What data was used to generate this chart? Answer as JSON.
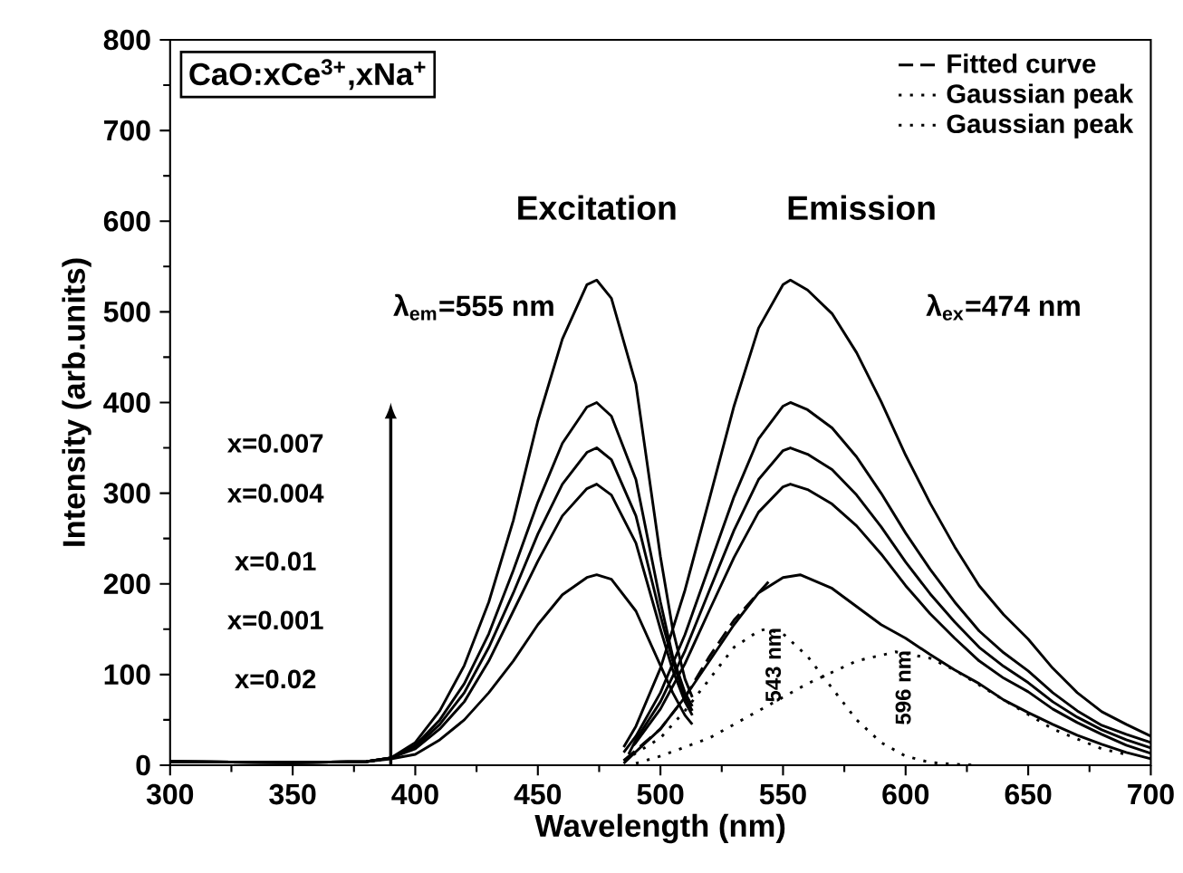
{
  "chart_data": {
    "type": "line",
    "title": "CaO:xCe$^{3+}$,xNa$^{+}$",
    "xlabel": "Wavelength (nm)",
    "ylabel": "Intensity (arb.units)",
    "xlim": [
      300,
      700
    ],
    "ylim": [
      0,
      800
    ],
    "xticks": [
      300,
      350,
      400,
      450,
      500,
      550,
      600,
      650,
      700
    ],
    "yticks": [
      0,
      100,
      200,
      300,
      400,
      500,
      600,
      700,
      800
    ],
    "grid": false,
    "legend": "top right",
    "annotations": [
      "Excitation",
      "Emission",
      "λ$_{em}$=555 nm",
      "λ$_{ex}$=474 nm",
      "x=0.007",
      "x=0.004",
      "x=0.01",
      "x=0.001",
      "x=0.02",
      {
        "text": "543 nm",
        "x": 543,
        "y": 150
      },
      {
        "text": "596 nm",
        "x": 596,
        "y": 125
      }
    ],
    "series": [
      {
        "color": "#000000",
        "x": [
          300,
          350,
          380,
          390,
          400,
          410,
          420,
          430,
          440,
          450,
          460,
          470,
          474,
          480,
          490,
          500,
          505,
          510,
          513
        ],
        "values": [
          4,
          3,
          4,
          8,
          25,
          60,
          110,
          180,
          270,
          380,
          470,
          530,
          535,
          515,
          420,
          230,
          150,
          95,
          75
        ]
      },
      {
        "color": "#000000",
        "x": [
          300,
          350,
          380,
          390,
          400,
          410,
          420,
          430,
          440,
          450,
          460,
          470,
          474,
          480,
          490,
          500,
          505,
          510,
          513
        ],
        "values": [
          4,
          3,
          4,
          8,
          22,
          50,
          90,
          145,
          215,
          290,
          355,
          395,
          400,
          385,
          315,
          180,
          120,
          80,
          65
        ]
      },
      {
        "color": "#000000",
        "x": [
          300,
          350,
          380,
          390,
          400,
          410,
          420,
          430,
          440,
          450,
          460,
          470,
          474,
          480,
          490,
          500,
          505,
          510,
          513
        ],
        "values": [
          4,
          3,
          4,
          8,
          20,
          45,
          80,
          130,
          190,
          255,
          310,
          345,
          350,
          337,
          275,
          165,
          115,
          75,
          60
        ]
      },
      {
        "color": "#000000",
        "x": [
          300,
          350,
          380,
          390,
          400,
          410,
          420,
          430,
          440,
          450,
          460,
          470,
          474,
          480,
          490,
          500,
          505,
          510,
          513
        ],
        "values": [
          4,
          3,
          4,
          8,
          18,
          40,
          70,
          115,
          170,
          225,
          275,
          305,
          310,
          298,
          245,
          150,
          105,
          70,
          55
        ]
      },
      {
        "color": "#000000",
        "x": [
          300,
          350,
          380,
          390,
          400,
          410,
          420,
          430,
          440,
          450,
          460,
          470,
          474,
          480,
          490,
          500,
          505,
          510,
          513
        ],
        "values": [
          4,
          3,
          4,
          7,
          12,
          28,
          50,
          80,
          115,
          155,
          188,
          207,
          210,
          205,
          170,
          110,
          80,
          55,
          45
        ]
      },
      {
        "color": "#000000",
        "x": [
          485,
          490,
          500,
          510,
          520,
          530,
          540,
          550,
          553,
          560,
          570,
          580,
          590,
          600,
          610,
          620,
          630,
          640,
          650,
          660,
          670,
          680,
          690,
          700
        ],
        "values": [
          20,
          43,
          107,
          193,
          294,
          396,
          482,
          530,
          535,
          524,
          498,
          455,
          401,
          342,
          289,
          241,
          198,
          166,
          139,
          107,
          80,
          59,
          45,
          32
        ]
      },
      {
        "color": "#000000",
        "x": [
          485,
          490,
          500,
          510,
          520,
          530,
          540,
          550,
          553,
          560,
          570,
          580,
          590,
          600,
          610,
          620,
          630,
          640,
          650,
          660,
          670,
          680,
          690,
          700
        ],
        "values": [
          14,
          32,
          80,
          144,
          220,
          296,
          360,
          396,
          400,
          392,
          372,
          340,
          300,
          256,
          216,
          180,
          148,
          124,
          104,
          80,
          60,
          44,
          34,
          25
        ]
      },
      {
        "color": "#000000",
        "x": [
          487,
          490,
          500,
          510,
          520,
          530,
          540,
          550,
          553,
          560,
          570,
          580,
          590,
          600,
          610,
          620,
          630,
          640,
          650,
          660,
          670,
          680,
          690,
          700
        ],
        "values": [
          12,
          28,
          70,
          126,
          193,
          259,
          315,
          347,
          350,
          343,
          326,
          298,
          263,
          224,
          189,
          158,
          130,
          109,
          91,
          70,
          53,
          39,
          28,
          19
        ]
      },
      {
        "color": "#000000",
        "x": [
          489,
          490,
          500,
          510,
          520,
          530,
          540,
          550,
          553,
          560,
          570,
          580,
          590,
          600,
          610,
          620,
          630,
          640,
          650,
          660,
          670,
          680,
          690,
          700
        ],
        "values": [
          22,
          25,
          62,
          112,
          171,
          229,
          279,
          307,
          310,
          304,
          288,
          264,
          233,
          198,
          167,
          140,
          115,
          96,
          81,
          62,
          47,
          34,
          22,
          13
        ]
      },
      {
        "color": "#000000",
        "x": [
          485,
          490,
          500,
          510,
          520,
          530,
          540,
          550,
          557,
          570,
          580,
          590,
          600,
          610,
          620,
          630,
          640,
          650,
          660,
          670,
          680,
          690,
          700
        ],
        "values": [
          2,
          15,
          40,
          75,
          115,
          155,
          190,
          207,
          210,
          195,
          175,
          155,
          140,
          122,
          105,
          90,
          72,
          58,
          45,
          33,
          23,
          14,
          7
        ]
      },
      {
        "name": "Fitted curve",
        "color": "#000000",
        "line_style": "dashed",
        "x": [
          485,
          500,
          510,
          520,
          530,
          540,
          545
        ],
        "values": [
          5,
          40,
          75,
          120,
          160,
          190,
          205
        ]
      },
      {
        "name": "Gaussian peak",
        "color": "#000000",
        "line_style": "dotted",
        "x": [
          485,
          500,
          510,
          520,
          530,
          540,
          543,
          550,
          560,
          570,
          580,
          590,
          600,
          610,
          620,
          630
        ],
        "values": [
          5,
          30,
          60,
          95,
          130,
          148,
          150,
          145,
          120,
          85,
          50,
          25,
          10,
          3,
          1,
          0
        ]
      },
      {
        "name": "Gaussian peak",
        "color": "#000000",
        "line_style": "dotted",
        "x": [
          490,
          500,
          520,
          540,
          560,
          580,
          596,
          610,
          620,
          640,
          650,
          660,
          680,
          690
        ],
        "values": [
          2,
          10,
          30,
          60,
          90,
          115,
          125,
          118,
          105,
          72,
          56,
          40,
          18,
          12
        ]
      }
    ]
  }
}
